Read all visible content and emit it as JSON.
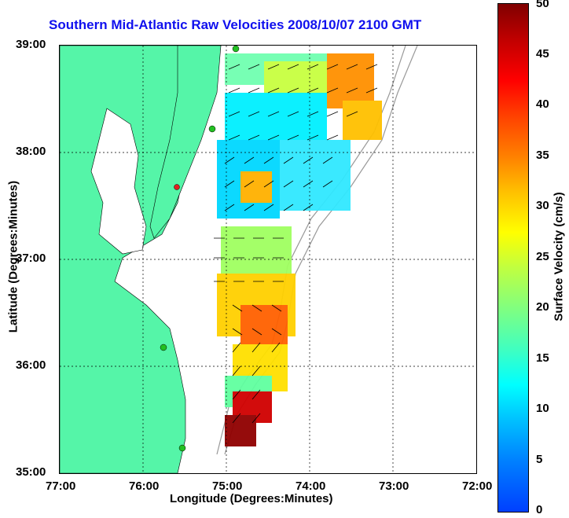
{
  "title": "Southern Mid-Atlantic Raw Velocities 2008/10/07 2100 GMT",
  "axes": {
    "xlabel": "Longitude (Degrees:Minutes)",
    "ylabel": "Latitude (Degrees:Minutes)",
    "x_ticks": [
      "77:00",
      "76:00",
      "75:00",
      "74:00",
      "73:00",
      "72:00"
    ],
    "y_ticks": [
      "39:00",
      "38:00",
      "37:00",
      "36:00",
      "35:00"
    ]
  },
  "colorbar": {
    "label": "Surface Velocity (cm/s)",
    "ticks": [
      "50",
      "45",
      "40",
      "35",
      "30",
      "25",
      "20",
      "15",
      "10",
      "5",
      "0"
    ]
  },
  "colors": {
    "land": "#55f5a8",
    "title": "#1010ee",
    "station_marker": "#22c022",
    "station_marker_red": "#e02020"
  }
}
